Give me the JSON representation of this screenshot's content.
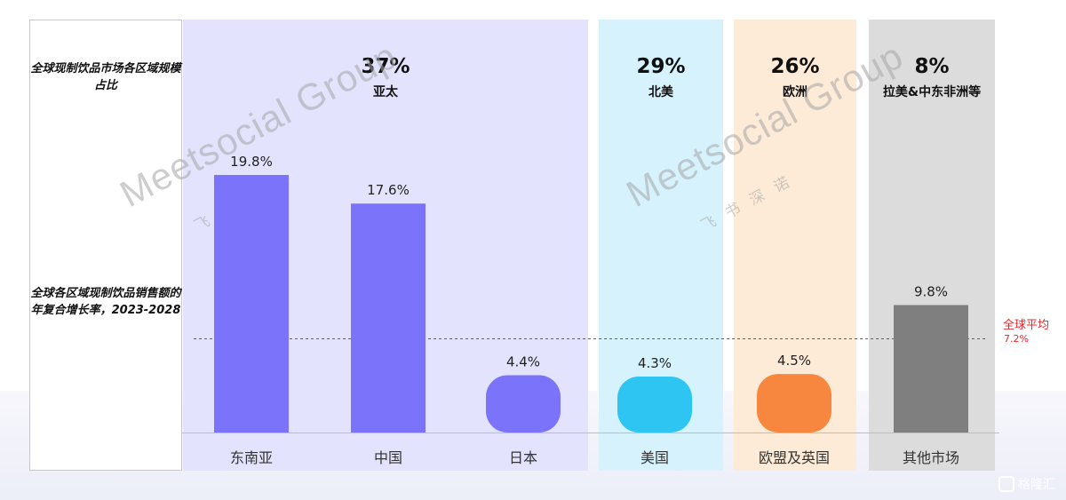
{
  "left_panel": {
    "share_label": "全球现制饮品市场各区域规模占比",
    "cagr_label": "全球各区域现制饮品销售额的年复合增长率，2023-2028"
  },
  "regions": [
    {
      "share": "37%",
      "name": "亚太",
      "bg": "#e3e3fd"
    },
    {
      "share": "29%",
      "name": "北美",
      "bg": "#d6f3fd"
    },
    {
      "share": "26%",
      "name": "欧洲",
      "bg": "#fdebd7"
    },
    {
      "share": "8%",
      "name": "拉美&中东非洲等",
      "bg": "#dcdcdc"
    }
  ],
  "chart_data": {
    "type": "bar",
    "title": "",
    "xlabel": "",
    "ylabel": "",
    "categories": [
      "东南亚",
      "中国",
      "日本",
      "美国",
      "欧盟及英国",
      "其他市场"
    ],
    "values": [
      19.8,
      17.6,
      4.4,
      4.3,
      4.5,
      9.8
    ],
    "value_labels": [
      "19.8%",
      "17.6%",
      "4.4%",
      "4.3%",
      "4.5%",
      "9.8%"
    ],
    "colors": [
      "#7b74fb",
      "#7b74fb",
      "#7b74fb",
      "#2ec5f2",
      "#f7873e",
      "#7f7f7f"
    ],
    "ylim": [
      0,
      20
    ],
    "reference_line": {
      "label": "全球平均",
      "value": 7.2,
      "value_label": "7.2%",
      "color": "#e8272b"
    }
  },
  "watermark": {
    "brand": "Meetsocial Group",
    "sub": "飞书深诺"
  },
  "corner_logo": {
    "text": "格隆汇"
  }
}
